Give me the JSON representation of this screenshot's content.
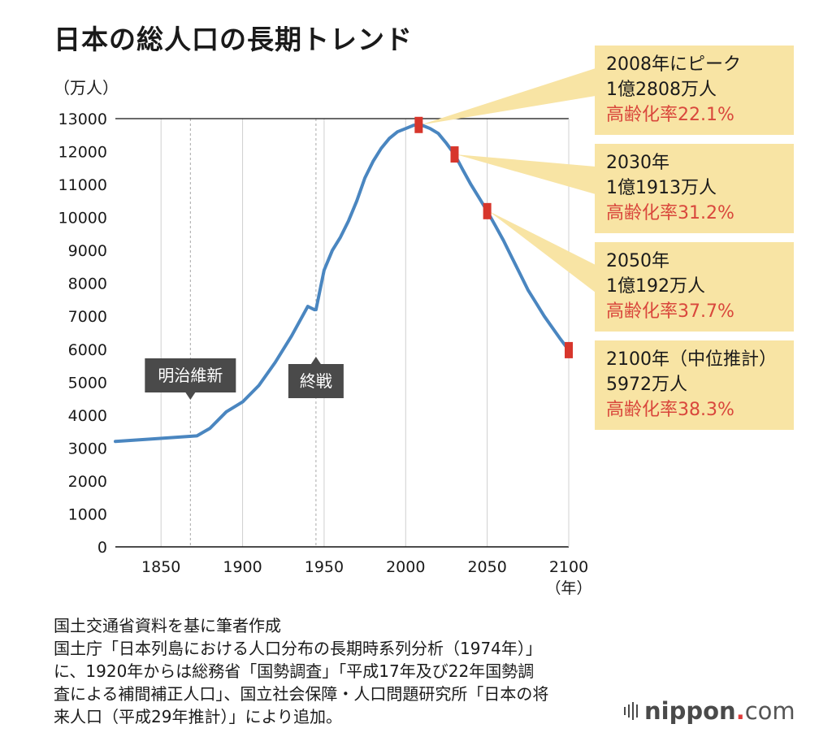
{
  "title": "日本の総人口の長期トレンド",
  "unit_label": "（万人）",
  "chart_data": {
    "type": "line",
    "title": "日本の総人口の長期トレンド",
    "ylabel": "（万人）",
    "xlabel": "（年）",
    "xlim": [
      1822,
      2100
    ],
    "ylim": [
      0,
      13000
    ],
    "x_ticks": [
      1850,
      1900,
      1950,
      2000,
      2050,
      2100
    ],
    "y_ticks": [
      0,
      1000,
      2000,
      3000,
      4000,
      5000,
      6000,
      7000,
      8000,
      9000,
      10000,
      11000,
      12000,
      13000
    ],
    "series": [
      {
        "color": "#4a86c0",
        "x": [
          1822,
          1846,
          1872,
          1880,
          1890,
          1900,
          1910,
          1920,
          1930,
          1940,
          1944,
          1945,
          1950,
          1955,
          1960,
          1965,
          1970,
          1975,
          1980,
          1985,
          1990,
          1995,
          2000,
          2005,
          2008,
          2010,
          2015,
          2020,
          2025,
          2030,
          2035,
          2040,
          2045,
          2050,
          2055,
          2060,
          2065,
          2070,
          2075,
          2080,
          2085,
          2090,
          2095,
          2100
        ],
        "y": [
          3200,
          3280,
          3370,
          3600,
          4100,
          4400,
          4900,
          5600,
          6400,
          7300,
          7200,
          7200,
          8400,
          9000,
          9400,
          9900,
          10500,
          11200,
          11700,
          12100,
          12400,
          12600,
          12700,
          12800,
          12808,
          12800,
          12700,
          12550,
          12250,
          11913,
          11450,
          11000,
          10600,
          10192,
          9750,
          9300,
          8800,
          8300,
          7800,
          7400,
          7000,
          6650,
          6300,
          5972
        ]
      }
    ],
    "markers": [
      {
        "x": 2008,
        "y": 12808
      },
      {
        "x": 2030,
        "y": 11913
      },
      {
        "x": 2050,
        "y": 10192
      },
      {
        "x": 2100,
        "y": 5972
      }
    ],
    "vertical_lines": [
      1868,
      1945
    ],
    "annotations": [
      {
        "label": "明治維新",
        "x": 1868
      },
      {
        "label": "終戦",
        "x": 1945
      }
    ],
    "grid": "vertical",
    "line_color": "#4a86c0",
    "marker_color": "#d7362c"
  },
  "callouts": [
    {
      "heading": "2008年にピーク",
      "population": "1億2808万人",
      "aging": "高齢化率22.1%"
    },
    {
      "heading": "2030年",
      "population": "1億1913万人",
      "aging": "高齢化率31.2%"
    },
    {
      "heading": "2050年",
      "population": "1億192万人",
      "aging": "高齢化率37.7%"
    },
    {
      "heading": "2100年（中位推計）",
      "population": "5972万人",
      "aging": "高齢化率38.3%"
    }
  ],
  "source_lines": [
    "国土交通省資料を基に筆者作成",
    "国土庁「日本列島における人口分布の長期時系列分析（1974年）」",
    "に、1920年からは総務省「国勢調査」「平成17年及び22年国勢調",
    "査による補間補正人口」、国立社会保障・人口問題研究所「日本の将",
    "来人口（平成29年推計）」により追加。"
  ],
  "logo": {
    "name": "nippon",
    "dot": ".",
    "suffix": "com"
  },
  "colors": {
    "callout_bg": "#f8e4a4",
    "aging_text": "#d9473c",
    "annotation_bg": "#4a4a4a"
  }
}
